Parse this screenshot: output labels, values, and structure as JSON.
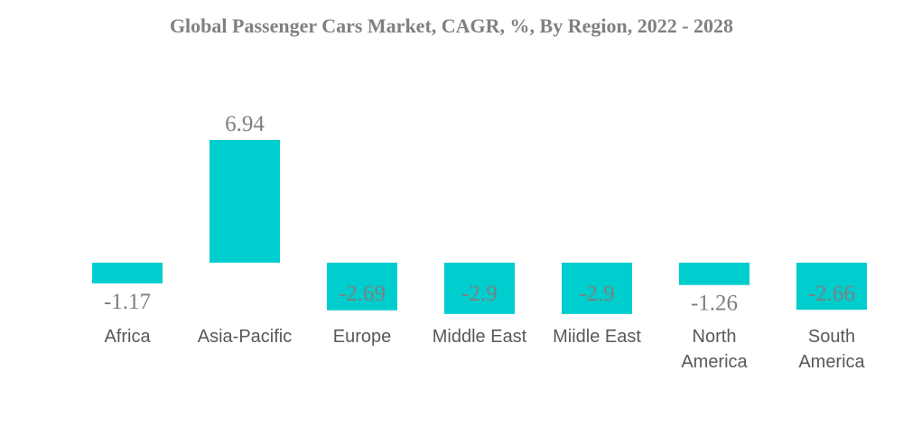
{
  "chart_data": {
    "type": "bar",
    "title": "Global Passenger Cars Market, CAGR, %, By Region, 2022 - 2028",
    "categories": [
      [
        "Africa"
      ],
      [
        "Asia-Pacific"
      ],
      [
        "Europe"
      ],
      [
        "Middle East"
      ],
      [
        "Miidle East"
      ],
      [
        "North",
        "America"
      ],
      [
        "South",
        "America"
      ]
    ],
    "values": [
      -1.17,
      6.94,
      -2.69,
      -2.9,
      -2.9,
      -1.26,
      -2.66
    ],
    "value_labels": [
      "-1.17",
      "6.94",
      "-2.69",
      "-2.9",
      "-2.9",
      "-1.26",
      "-2.66"
    ],
    "xlabel": "",
    "ylabel": "",
    "grid": false,
    "legend": "none",
    "bar_color": "#00CDCD"
  }
}
